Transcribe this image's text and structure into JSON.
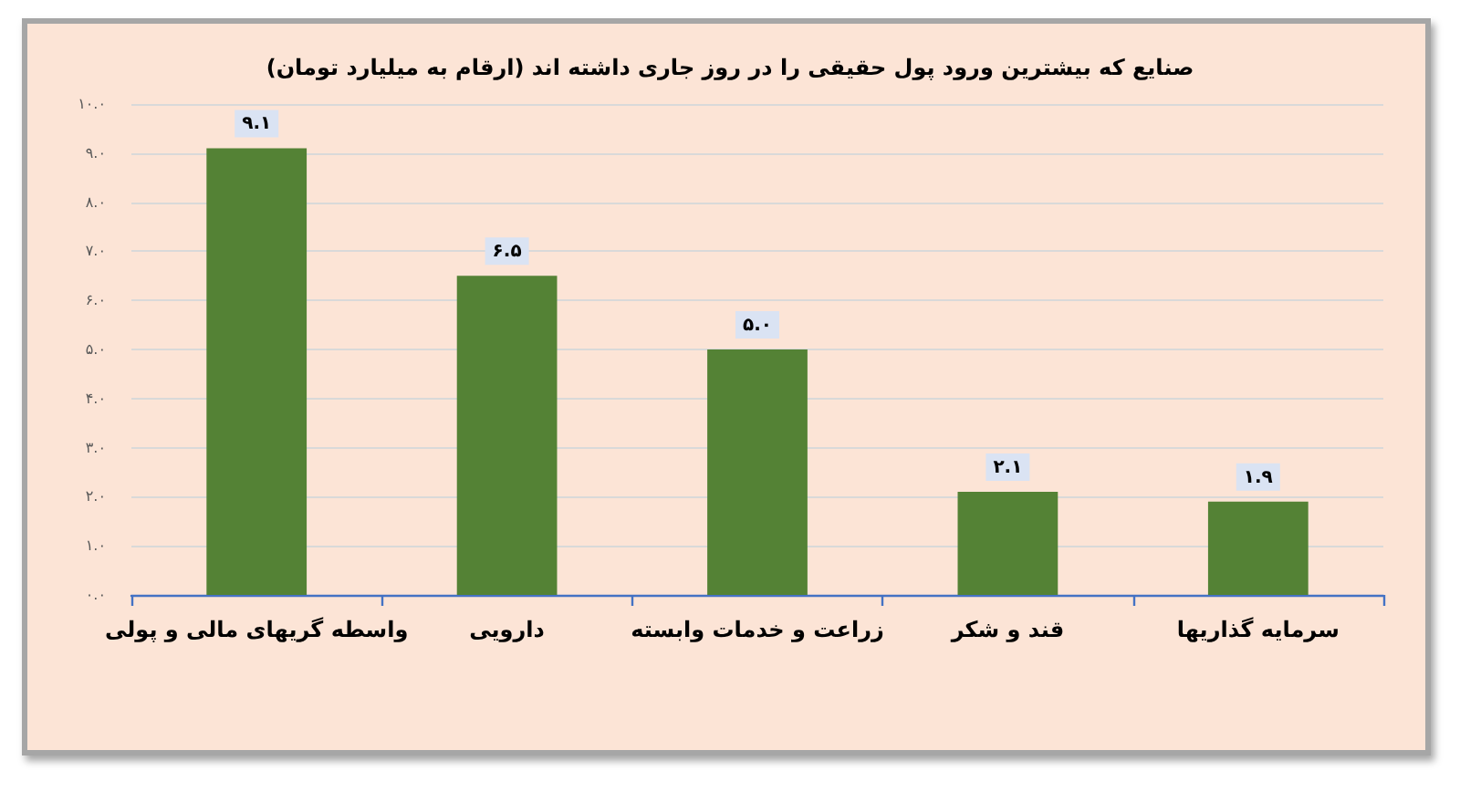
{
  "chart_data": {
    "type": "bar",
    "title": "صنایع که بیشترین ورود پول حقیقی را در روز جاری داشته اند (ارقام به میلیارد تومان)",
    "categories": [
      "واسطه گریهای مالی و پولی",
      "دارویی",
      "زراعت و خدمات وابسته",
      "قند و شکر",
      "سرمایه گذاریها"
    ],
    "values": [
      9.1,
      6.5,
      5.0,
      2.1,
      1.9
    ],
    "color": "#548235",
    "value_labels": [
      "۹.۱",
      "۶.۵",
      "۵.۰",
      "۲.۱",
      "۱.۹"
    ],
    "ylim": [
      0,
      10
    ],
    "yticks": [
      {
        "value": 0,
        "label": "۰.۰"
      },
      {
        "value": 1,
        "label": "۱.۰"
      },
      {
        "value": 2,
        "label": "۲.۰"
      },
      {
        "value": 3,
        "label": "۳.۰"
      },
      {
        "value": 4,
        "label": "۴.۰"
      },
      {
        "value": 5,
        "label": "۵.۰"
      },
      {
        "value": 6,
        "label": "۶.۰"
      },
      {
        "value": 7,
        "label": "۷.۰"
      },
      {
        "value": 8,
        "label": "۸.۰"
      },
      {
        "value": 9,
        "label": "۹.۰"
      },
      {
        "value": 10,
        "label": "۱۰.۰"
      }
    ],
    "grid": "y"
  }
}
